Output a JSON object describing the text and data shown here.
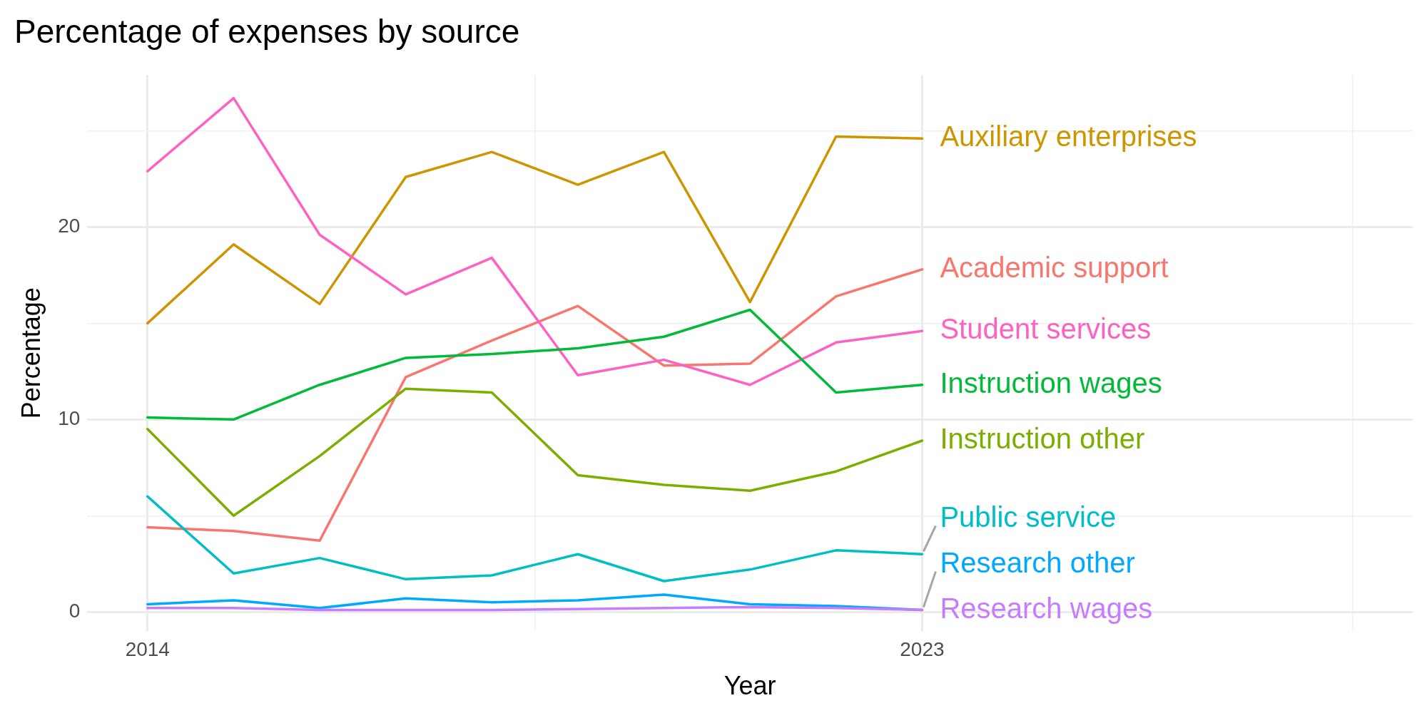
{
  "chart_data": {
    "type": "line",
    "title": "Percentage of expenses by source",
    "xlabel": "Year",
    "ylabel": "Percentage",
    "x": [
      2014,
      2015,
      2016,
      2017,
      2018,
      2019,
      2020,
      2021,
      2022,
      2023
    ],
    "xlim": [
      2013.3,
      2028.7
    ],
    "xticks": [
      2014,
      {
        "value": 2018.5,
        "label": null
      },
      2023,
      {
        "value": 2028,
        "label": null
      }
    ],
    "ylim": [
      -1,
      27.9
    ],
    "yticks": [
      0,
      {
        "value": 5,
        "label": null
      },
      10,
      {
        "value": 15,
        "label": null
      },
      20,
      {
        "value": 25,
        "label": null
      }
    ],
    "grid": true,
    "legend": false,
    "marker": "none",
    "line_style": "solid",
    "series": [
      {
        "name": "Auxiliary enterprises",
        "color": "#cd9600",
        "values": [
          15.0,
          19.1,
          16.0,
          22.6,
          23.9,
          22.2,
          23.9,
          16.1,
          24.7,
          24.6
        ]
      },
      {
        "name": "Academic support",
        "color": "#f8766d",
        "values": [
          4.4,
          4.2,
          3.7,
          12.2,
          14.1,
          15.9,
          12.8,
          12.9,
          16.4,
          17.8
        ]
      },
      {
        "name": "Student services",
        "color": "#ff61c3",
        "values": [
          22.9,
          26.7,
          19.6,
          16.5,
          18.4,
          12.3,
          13.1,
          11.8,
          14.0,
          14.6
        ]
      },
      {
        "name": "Instruction wages",
        "color": "#00ba38",
        "values": [
          10.1,
          10.0,
          11.8,
          13.2,
          13.4,
          13.7,
          14.3,
          15.7,
          11.4,
          11.8
        ]
      },
      {
        "name": "Instruction other",
        "color": "#7cae00",
        "values": [
          9.5,
          5.0,
          8.1,
          11.6,
          11.4,
          7.1,
          6.6,
          6.3,
          7.3,
          8.9
        ]
      },
      {
        "name": "Public service",
        "color": "#00bfc4",
        "values": [
          6.0,
          2.0,
          2.8,
          1.7,
          1.9,
          3.0,
          1.6,
          2.2,
          3.2,
          3.0
        ]
      },
      {
        "name": "Research other",
        "color": "#00a9ff",
        "values": [
          0.4,
          0.6,
          0.2,
          0.7,
          0.5,
          0.6,
          0.9,
          0.4,
          0.3,
          0.1
        ]
      },
      {
        "name": "Research wages",
        "color": "#c77cff",
        "values": [
          0.2,
          0.2,
          0.1,
          0.1,
          0.1,
          0.15,
          0.2,
          0.25,
          0.2,
          0.1
        ]
      }
    ]
  }
}
